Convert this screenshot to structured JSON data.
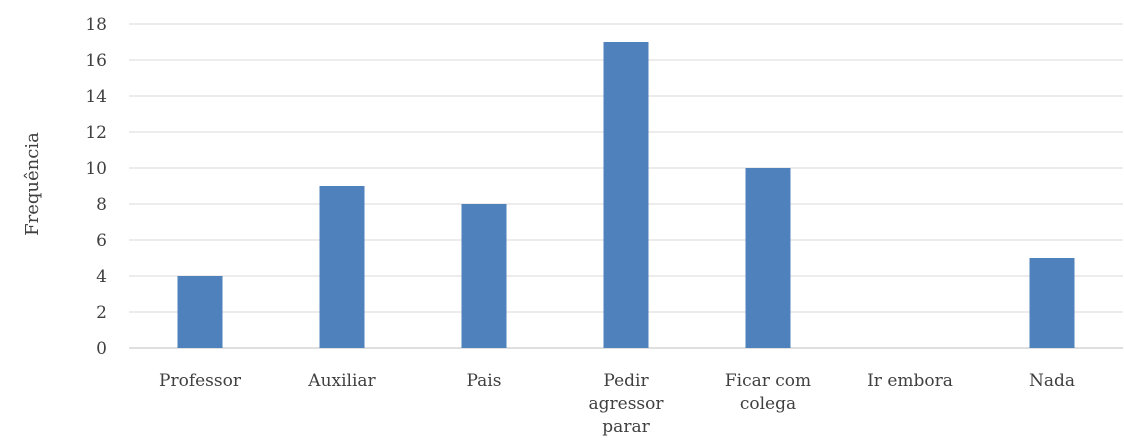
{
  "chart_data": {
    "type": "bar",
    "title": "",
    "xlabel": "",
    "ylabel": "Frequência",
    "categories": [
      [
        "Professor"
      ],
      [
        "Auxiliar"
      ],
      [
        "Pais"
      ],
      [
        "Pedir",
        "agressor",
        "parar"
      ],
      [
        "Ficar com",
        "colega"
      ],
      [
        "Ir embora"
      ],
      [
        "Nada"
      ]
    ],
    "values": [
      4,
      9,
      8,
      17,
      10,
      0,
      5
    ],
    "ylim": [
      0,
      18
    ],
    "yticks": [
      0,
      2,
      4,
      6,
      8,
      10,
      12,
      14,
      16,
      18
    ],
    "grid": true,
    "legend": "none",
    "colors": {
      "bar": "#4f81bd",
      "grid": "#d9d9d9",
      "axis": "#bfbfbf",
      "text": "#404040"
    }
  }
}
